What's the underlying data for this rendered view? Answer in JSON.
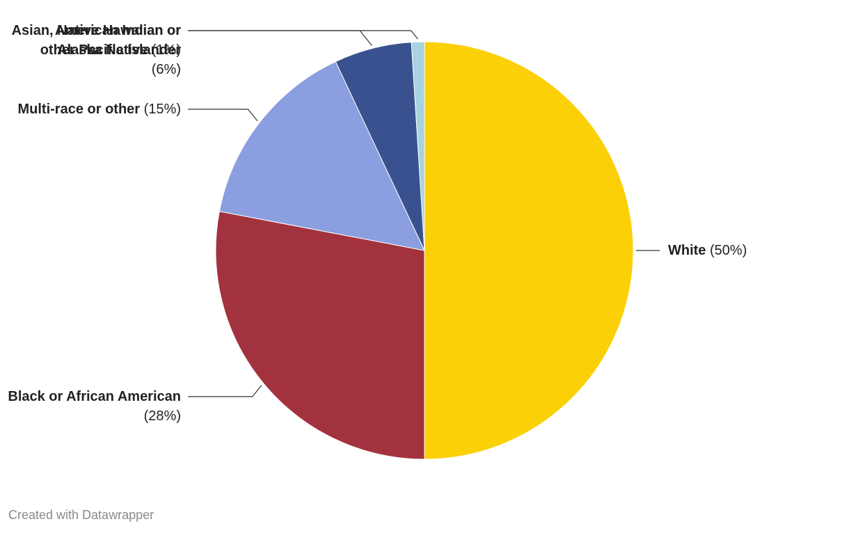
{
  "chart_data": {
    "type": "pie",
    "categories": [
      "White",
      "Black or African American",
      "Multi-race or other",
      "Asian, Native Hawaiian or other Pacific Islander",
      "American Indian or Alaska Native"
    ],
    "values": [
      50,
      28,
      15,
      6,
      1
    ],
    "value_labels": [
      "(50%)",
      "(28%)",
      "(15%)",
      "(6%)",
      "(1%)"
    ],
    "colors": [
      "#fcd006",
      "#a3323f",
      "#8a9ee0",
      "#39528f",
      "#a7d3e0"
    ],
    "credit": "Created with Datawrapper"
  }
}
